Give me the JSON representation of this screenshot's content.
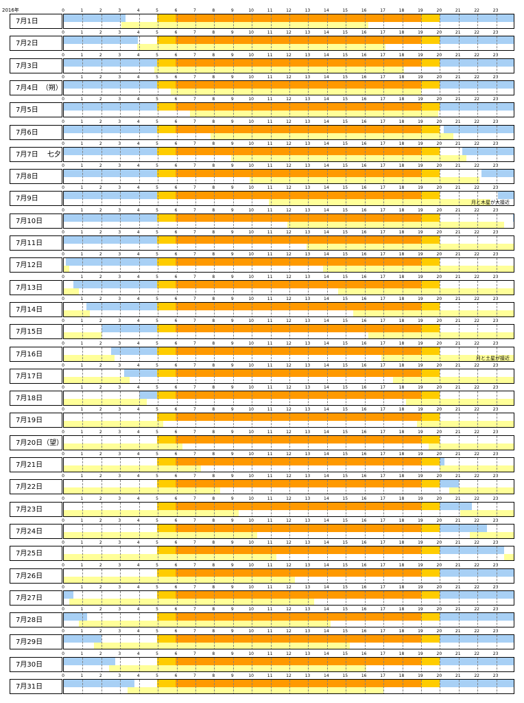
{
  "year_label": "2016年",
  "colors": {
    "night": "#a8d0f5",
    "twilight": "#ffcc00",
    "day": "#ff9900",
    "moon": "#ffff99"
  },
  "chart_data": {
    "type": "timeline",
    "hours": [
      "0",
      "1",
      "2",
      "3",
      "4",
      "5",
      "6",
      "7",
      "8",
      "9",
      "10",
      "11",
      "12",
      "13",
      "14",
      "15",
      "16",
      "17",
      "18",
      "19",
      "20",
      "21",
      "22",
      "23"
    ],
    "xlim": [
      0,
      24
    ],
    "sun": {
      "sunrise_twilight": 4.95,
      "sunrise": 5.95,
      "sunset": 19.0,
      "sunset_twilight": 20.0
    },
    "rows": [
      {
        "date": "7月1日",
        "moon_rise": 3.05,
        "moon_set": 16.2,
        "note": ""
      },
      {
        "date": "7月2日",
        "moon_rise": 3.9,
        "moon_set": 17.1,
        "note": ""
      },
      {
        "date": "7月3日",
        "moon_rise": 4.8,
        "moon_set": 18.1,
        "note": ""
      },
      {
        "date": "7月4日　（朔）",
        "moon_rise": 5.7,
        "moon_set": 19.0,
        "note": ""
      },
      {
        "date": "7月5日",
        "moon_rise": 6.7,
        "moon_set": 19.9,
        "note": ""
      },
      {
        "date": "7月6日",
        "moon_rise": 7.8,
        "moon_set": 20.7,
        "note": ""
      },
      {
        "date": "7月7日　 七夕",
        "moon_rise": 8.9,
        "moon_set": 21.4,
        "note": ""
      },
      {
        "date": "7月8日",
        "moon_rise": 9.9,
        "moon_set": 22.1,
        "note": ""
      },
      {
        "date": "7月9日",
        "moon_rise": 10.9,
        "moon_set": 22.7,
        "note": "月と木星が大接近"
      },
      {
        "date": "7月10日",
        "moon_rise": 11.9,
        "moon_set": 23.4,
        "note": ""
      },
      {
        "date": "7月11日",
        "moon_rise": 12.9,
        "moon_set": 24,
        "note": ""
      },
      {
        "date": "7月12日",
        "moon_rise": 13.8,
        "moon_set": 24,
        "moon_prev_set": 0.3,
        "note": ""
      },
      {
        "date": "7月13日",
        "moon_rise": 14.6,
        "moon_set": 24,
        "moon_prev_set": 0.8,
        "note": ""
      },
      {
        "date": "7月14日",
        "moon_rise": 15.4,
        "moon_set": 24,
        "moon_prev_set": 1.4,
        "note": ""
      },
      {
        "date": "7月15日",
        "moon_rise": 16.2,
        "moon_set": 24,
        "moon_prev_set": 2.0,
        "note": ""
      },
      {
        "date": "7月16日",
        "moon_rise": 16.9,
        "moon_set": 24,
        "moon_prev_set": 2.7,
        "note": "月と土星が接近"
      },
      {
        "date": "7月17日",
        "moon_rise": 17.5,
        "moon_set": 24,
        "moon_prev_set": 3.5,
        "note": ""
      },
      {
        "date": "7月18日",
        "moon_rise": 18.2,
        "moon_set": 24,
        "moon_prev_set": 4.4,
        "note": ""
      },
      {
        "date": "7月19日",
        "moon_rise": 18.8,
        "moon_set": 24,
        "moon_prev_set": 5.3,
        "note": ""
      },
      {
        "date": "7月20日（望）",
        "moon_rise": 19.4,
        "moon_set": 24,
        "moon_prev_set": 6.3,
        "note": ""
      },
      {
        "date": "7月21日",
        "moon_rise": 20.0,
        "moon_set": 24,
        "moon_prev_set": 7.3,
        "note": ""
      },
      {
        "date": "7月22日",
        "moon_rise": 20.5,
        "moon_set": 24,
        "moon_prev_set": 8.3,
        "note": ""
      },
      {
        "date": "7月23日",
        "moon_rise": 21.1,
        "moon_set": 24,
        "moon_prev_set": 9.3,
        "note": ""
      },
      {
        "date": "7月24日",
        "moon_rise": 21.6,
        "moon_set": 24,
        "moon_prev_set": 10.3,
        "note": ""
      },
      {
        "date": "7月25日",
        "moon_rise": 23.4,
        "moon_set": 24,
        "moon_prev_set": 11.3,
        "note": ""
      },
      {
        "date": "7月26日",
        "moon_rise": 24,
        "moon_set": 24,
        "moon_prev_set": 12.3,
        "note": ""
      },
      {
        "date": "7月27日",
        "moon_rise": 0.3,
        "moon_set": 13.3,
        "note": ""
      },
      {
        "date": "7月28日",
        "moon_rise": 0.8,
        "moon_set": 14.2,
        "note": ""
      },
      {
        "date": "7月29日",
        "moon_rise": 1.6,
        "moon_set": 15.2,
        "note": ""
      },
      {
        "date": "7月30日",
        "moon_rise": 2.4,
        "moon_set": 16.1,
        "note": ""
      },
      {
        "date": "7月31日",
        "moon_rise": 3.4,
        "moon_set": 17.0,
        "note": ""
      }
    ],
    "night_bars": [
      {
        "start": 0,
        "end": 3.3,
        "post": 20.0
      },
      {
        "start": 0,
        "end": 3.95,
        "post": 20.0
      },
      {
        "start": 0,
        "end": 4.95,
        "post": 20.0
      },
      {
        "start": 0,
        "end": 4.95,
        "post": 20.0
      },
      {
        "start": 0,
        "end": 4.95,
        "post": 20.0
      },
      {
        "start": 0,
        "end": 4.95,
        "post": 20.2
      },
      {
        "start": 0,
        "end": 4.95,
        "post": 21.2
      },
      {
        "start": 0,
        "end": 4.95,
        "post": 22.2
      },
      {
        "start": 0,
        "end": 4.95,
        "post": 23.1
      },
      {
        "start": 0,
        "end": 4.95,
        "post": 23.9
      },
      {
        "start": 0,
        "end": 4.95,
        "post": 24
      },
      {
        "start": 0.1,
        "end": 4.95,
        "post": 24
      },
      {
        "start": 0.5,
        "end": 4.95,
        "post": 24
      },
      {
        "start": 1.2,
        "end": 4.95,
        "post": 24
      },
      {
        "start": 2.0,
        "end": 4.95,
        "post": 24
      },
      {
        "start": 2.5,
        "end": 4.95,
        "post": 24
      },
      {
        "start": 3.2,
        "end": 4.95,
        "post": 24
      },
      {
        "start": 4.0,
        "end": 4.95,
        "post": 24
      },
      {
        "start": 5.0,
        "end": 4.95,
        "post": 24
      },
      {
        "start": 5.0,
        "end": 4.95,
        "post": 24
      },
      {
        "start": 5.0,
        "end": 4.95,
        "post": 20.0,
        "post_end": 20.25
      },
      {
        "start": 5.0,
        "end": 4.95,
        "post": 20.0,
        "post_end": 21.0
      },
      {
        "start": 5.0,
        "end": 4.95,
        "post": 20.0,
        "post_end": 21.7
      },
      {
        "start": 5.0,
        "end": 4.95,
        "post": 20.0,
        "post_end": 22.5
      },
      {
        "start": 5.0,
        "end": 4.95,
        "post": 20.0,
        "post_end": 23.4
      },
      {
        "start": 0,
        "end": 0,
        "post": 20.0
      },
      {
        "start": 0,
        "end": 0.5,
        "post": 20.0
      },
      {
        "start": 0,
        "end": 1.25,
        "post": 20.0
      },
      {
        "start": 0,
        "end": 2.0,
        "post": 20.0
      },
      {
        "start": 0,
        "end": 2.75,
        "post": 20.0
      },
      {
        "start": 0,
        "end": 3.75,
        "post": 20.0
      }
    ]
  }
}
